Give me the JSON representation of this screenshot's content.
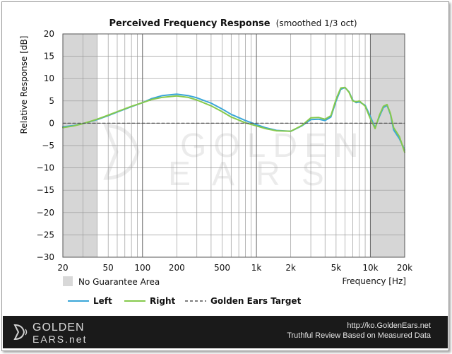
{
  "chart_data": {
    "type": "line",
    "title": "Perceived Frequency Response",
    "subtitle": "(smoothed 1/3 oct)",
    "ylabel": "Relative Response [dB]",
    "xlabel": "Frequency [Hz]",
    "x_scale": "log",
    "xlim": [
      20,
      20000
    ],
    "ylim": [
      -30,
      20
    ],
    "y_ticks": [
      20,
      15,
      10,
      5,
      0,
      -5,
      -10,
      -15,
      -20,
      -25,
      -30
    ],
    "x_ticks": [
      {
        "value": 20,
        "label": "20"
      },
      {
        "value": 50,
        "label": "50"
      },
      {
        "value": 100,
        "label": "100"
      },
      {
        "value": 200,
        "label": "200"
      },
      {
        "value": 500,
        "label": "500"
      },
      {
        "value": 1000,
        "label": "1k"
      },
      {
        "value": 2000,
        "label": "2k"
      },
      {
        "value": 5000,
        "label": "5k"
      },
      {
        "value": 10000,
        "label": "10k"
      },
      {
        "value": 20000,
        "label": "20k"
      }
    ],
    "shaded_ranges": [
      [
        20,
        40
      ],
      [
        10000,
        20000
      ]
    ],
    "shaded_label": "No Guarantee Area",
    "grid": true,
    "legend_placement": "bottom",
    "series": [
      {
        "name": "Left",
        "color": "#3aa6d8",
        "x": [
          20,
          25,
          30,
          40,
          50,
          60,
          80,
          100,
          120,
          150,
          200,
          250,
          300,
          400,
          500,
          600,
          800,
          1000,
          1200,
          1500,
          2000,
          2500,
          3000,
          3500,
          4000,
          4500,
          5000,
          5500,
          6000,
          6500,
          7000,
          7500,
          8000,
          9000,
          10000,
          11000,
          12000,
          13000,
          14000,
          15000,
          16000,
          18000,
          20000
        ],
        "y": [
          -0.8,
          -0.5,
          -0.1,
          0.8,
          1.7,
          2.5,
          3.7,
          4.6,
          5.5,
          6.2,
          6.5,
          6.2,
          5.7,
          4.5,
          3.2,
          2.0,
          0.6,
          -0.3,
          -1.0,
          -1.6,
          -1.8,
          -0.6,
          0.8,
          0.9,
          0.6,
          1.4,
          5.0,
          7.6,
          8.0,
          7.0,
          5.2,
          4.6,
          4.8,
          4.0,
          1.5,
          -1.0,
          1.5,
          3.5,
          4.0,
          2.0,
          -1.5,
          -3.5,
          -6.0
        ]
      },
      {
        "name": "Right",
        "color": "#86c94c",
        "x": [
          20,
          25,
          30,
          40,
          50,
          60,
          80,
          100,
          120,
          150,
          200,
          250,
          300,
          400,
          500,
          600,
          800,
          1000,
          1200,
          1500,
          2000,
          2500,
          3000,
          3500,
          4000,
          4500,
          5000,
          5500,
          6000,
          6500,
          7000,
          7500,
          8000,
          9000,
          10000,
          11000,
          12000,
          13000,
          14000,
          15000,
          16000,
          18000,
          20000
        ],
        "y": [
          -1.0,
          -0.6,
          -0.1,
          0.9,
          1.8,
          2.6,
          3.8,
          4.6,
          5.3,
          5.8,
          6.1,
          5.8,
          5.2,
          3.9,
          2.6,
          1.4,
          0.1,
          -0.6,
          -1.2,
          -1.7,
          -1.8,
          -0.5,
          1.2,
          1.3,
          0.9,
          1.7,
          5.4,
          7.9,
          8.0,
          6.9,
          5.0,
          4.8,
          5.0,
          3.8,
          1.0,
          -1.2,
          1.8,
          3.8,
          4.2,
          2.2,
          -1.0,
          -3.0,
          -6.5
        ]
      },
      {
        "name": "Golden Ears Target",
        "color": "#555555",
        "dashed": true,
        "x": [
          20,
          20000
        ],
        "y": [
          0,
          0
        ]
      }
    ]
  },
  "footer": {
    "brand_line1": "GOLDEN",
    "brand_line2": "EARS.net",
    "url": "http://ko.GoldenEars.net",
    "tagline": "Truthful Review Based on Measured Data"
  }
}
